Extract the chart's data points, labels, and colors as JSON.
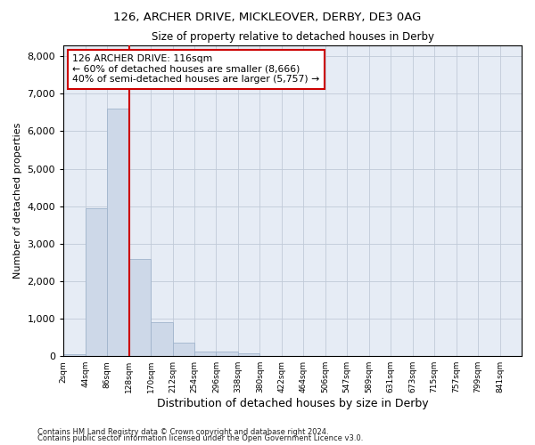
{
  "title1": "126, ARCHER DRIVE, MICKLEOVER, DERBY, DE3 0AG",
  "title2": "Size of property relative to detached houses in Derby",
  "xlabel": "Distribution of detached houses by size in Derby",
  "ylabel": "Number of detached properties",
  "footer1": "Contains HM Land Registry data © Crown copyright and database right 2024.",
  "footer2": "Contains public sector information licensed under the Open Government Licence v3.0.",
  "annotation_title": "126 ARCHER DRIVE: 116sqm",
  "annotation_line1": "← 60% of detached houses are smaller (8,666)",
  "annotation_line2": "40% of semi-detached houses are larger (5,757) →",
  "bar_color": "#cdd8e8",
  "bar_edge_color": "#a0b4cc",
  "vline_color": "#cc0000",
  "bin_labels": [
    "2sqm",
    "44sqm",
    "86sqm",
    "128sqm",
    "170sqm",
    "212sqm",
    "254sqm",
    "296sqm",
    "338sqm",
    "380sqm",
    "422sqm",
    "464sqm",
    "506sqm",
    "547sqm",
    "589sqm",
    "631sqm",
    "673sqm",
    "715sqm",
    "757sqm",
    "799sqm",
    "841sqm"
  ],
  "bar_values": [
    55,
    3950,
    6600,
    2600,
    900,
    350,
    130,
    120,
    70,
    0,
    0,
    0,
    0,
    0,
    0,
    0,
    0,
    0,
    0,
    0,
    0
  ],
  "ylim": [
    0,
    8300
  ],
  "yticks": [
    0,
    1000,
    2000,
    3000,
    4000,
    5000,
    6000,
    7000,
    8000
  ],
  "grid_color": "#c0cad8",
  "background_color": "#e6ecf5",
  "vline_pos": 3.0
}
